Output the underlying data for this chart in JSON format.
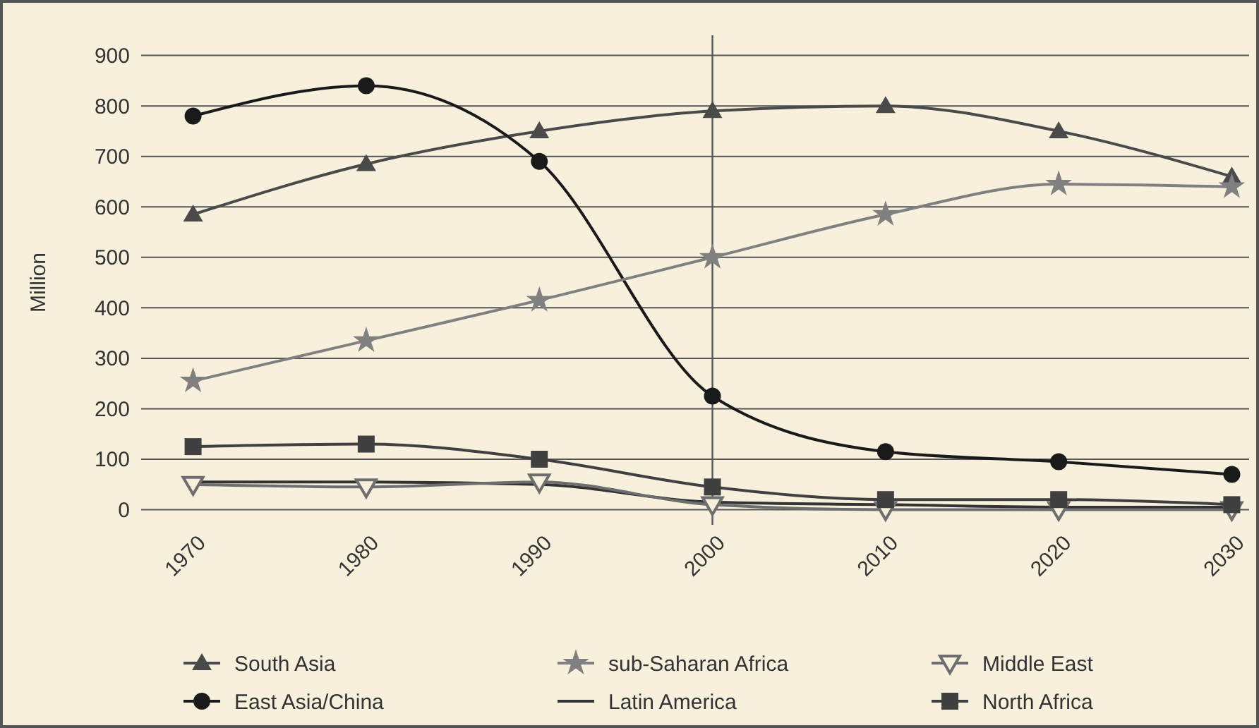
{
  "chart_data": {
    "type": "line",
    "ylabel": "Million",
    "x": [
      1970,
      1980,
      1990,
      2000,
      2010,
      2020,
      2030
    ],
    "xlim": [
      1967,
      2031
    ],
    "xticks": [
      1970,
      1980,
      1990,
      2000,
      2010,
      2020,
      2030
    ],
    "ylim": [
      -30,
      940
    ],
    "yticks": [
      0,
      100,
      200,
      300,
      400,
      500,
      600,
      700,
      800,
      900
    ],
    "grid": "y",
    "legend": "bottom",
    "ref_lines": [
      {
        "axis": "x",
        "value": 2000,
        "color": "#555555"
      }
    ],
    "series": [
      {
        "name": "South Asia",
        "color": "#4a4a4a",
        "marker": "triangle",
        "values": [
          585,
          685,
          750,
          790,
          800,
          750,
          660
        ]
      },
      {
        "name": "East Asia/China",
        "color": "#1a1a1a",
        "marker": "circle",
        "values": [
          780,
          840,
          690,
          225,
          115,
          95,
          70
        ]
      },
      {
        "name": "sub-Saharan Africa",
        "color": "#808080",
        "marker": "star",
        "values": [
          255,
          335,
          415,
          500,
          585,
          645,
          640
        ]
      },
      {
        "name": "Latin America",
        "color": "#333333",
        "marker": "none",
        "values": [
          55,
          55,
          50,
          15,
          10,
          5,
          5
        ]
      },
      {
        "name": "Middle East",
        "color": "#6e6e6e",
        "marker": "triangle-down",
        "values": [
          50,
          45,
          55,
          10,
          0,
          0,
          0
        ]
      },
      {
        "name": "North Africa",
        "color": "#404040",
        "marker": "square",
        "values": [
          125,
          130,
          100,
          45,
          20,
          20,
          10
        ]
      }
    ]
  }
}
